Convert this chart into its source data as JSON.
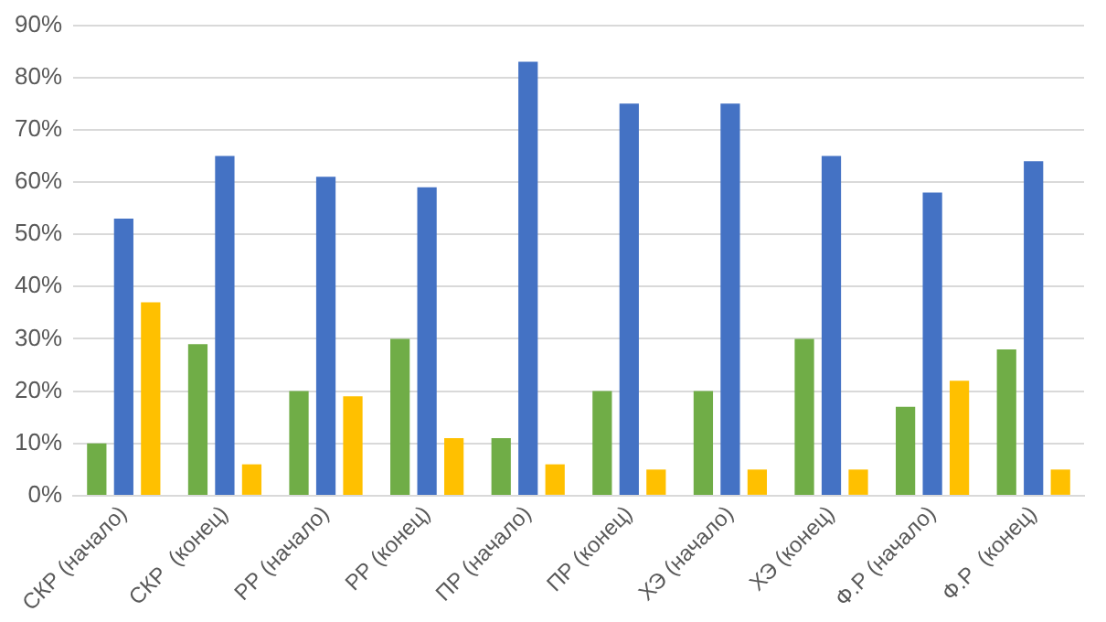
{
  "chart_data": {
    "type": "bar",
    "categories": [
      "СКР (начало)",
      "СКР  (конец)",
      "РР (начало)",
      "РР (конец)",
      "ПР (начало)",
      "ПР (конец)",
      "ХЭ (начало)",
      "ХЭ (конец)",
      "Ф.Р (начало)",
      "Ф.Р  (конец)"
    ],
    "series": [
      {
        "color": "#70ad47",
        "values": [
          10,
          29,
          20,
          30,
          11,
          20,
          20,
          30,
          17,
          28
        ]
      },
      {
        "color": "#4472c4",
        "values": [
          53,
          65,
          61,
          59,
          83,
          75,
          75,
          65,
          58,
          64
        ]
      },
      {
        "color": "#ffc000",
        "values": [
          37,
          6,
          19,
          11,
          6,
          5,
          5,
          5,
          22,
          5
        ]
      }
    ],
    "ylim": [
      0,
      90
    ],
    "yticks": [
      {
        "value": 0,
        "label": "0%"
      },
      {
        "value": 10,
        "label": "10%"
      },
      {
        "value": 20,
        "label": "20%"
      },
      {
        "value": 30,
        "label": "30%"
      },
      {
        "value": 40,
        "label": "40%"
      },
      {
        "value": 50,
        "label": "50%"
      },
      {
        "value": 60,
        "label": "60%"
      },
      {
        "value": 70,
        "label": "70%"
      },
      {
        "value": 80,
        "label": "80%"
      },
      {
        "value": 90,
        "label": "90%"
      }
    ],
    "grid": "y",
    "legend": false
  }
}
